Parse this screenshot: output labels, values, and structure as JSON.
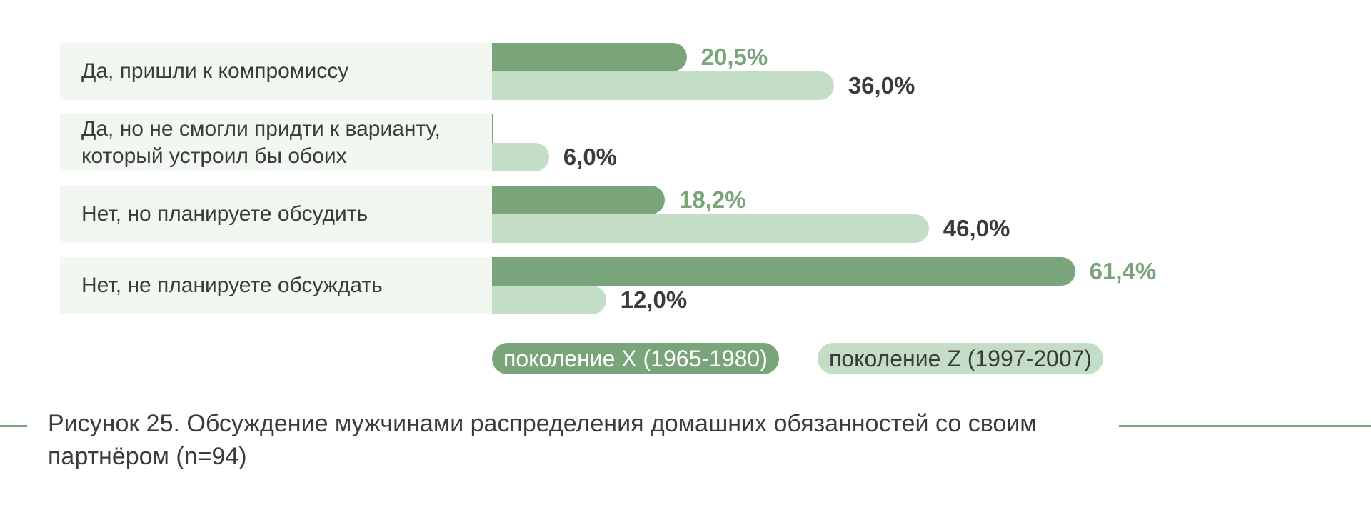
{
  "chart_data": {
    "type": "bar",
    "orientation": "horizontal",
    "categories": [
      "Да, пришли к компромиссу",
      "Да, но не смогли придти к варианту, который устроил бы обоих",
      "Нет, но планируете обсудить",
      "Нет, не планируете обсуждать"
    ],
    "series": [
      {
        "name": "поколение X (1965-1980)",
        "values": [
          20.5,
          0,
          18.2,
          61.4
        ],
        "labels": [
          "20,5%",
          "",
          "18,2%",
          "61,4%"
        ],
        "color": "#7aa57b",
        "label_color": "#7aa57b"
      },
      {
        "name": "поколение Z (1997-2007)",
        "values": [
          36.0,
          6.0,
          46.0,
          12.0
        ],
        "labels": [
          "36,0%",
          "6,0%",
          "46,0%",
          "12,0%"
        ],
        "color": "#c4ddc6",
        "label_color": "#3b3b3b"
      }
    ],
    "xlim": [
      0,
      100
    ],
    "grid": false,
    "legend": "bottom-center"
  },
  "caption": "Рисунок 25. Обсуждение мужчинами распределения домашних обязанностей со своим партнёром (n=94)"
}
